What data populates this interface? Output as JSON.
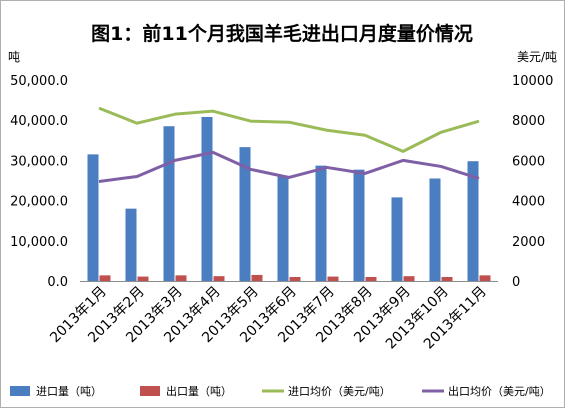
{
  "chart_data": {
    "type": "bar",
    "title": "图1：前11个月我国羊毛进出口月度量价情况",
    "ylabel_left": "吨",
    "ylabel_right": "美元/吨",
    "ylim_left": [
      0,
      50000
    ],
    "ylim_right": [
      0,
      10000
    ],
    "yticks_left": [
      "0.0",
      "10,000.0",
      "20,000.0",
      "30,000.0",
      "40,000.0",
      "50,000.0"
    ],
    "yticks_right": [
      "0",
      "2000",
      "4000",
      "6000",
      "8000",
      "10000"
    ],
    "categories": [
      "2013年1月",
      "2013年2月",
      "2013年3月",
      "2013年4月",
      "2013年5月",
      "2013年6月",
      "2013年7月",
      "2013年8月",
      "2013年9月",
      "2013年10月",
      "2013年11月"
    ],
    "series": [
      {
        "name": "进口量（吨）",
        "type": "bar",
        "axis": "left",
        "color": "#4a7ec1",
        "values": [
          31500,
          18000,
          38500,
          40800,
          33300,
          26200,
          28700,
          27700,
          20800,
          25500,
          29800
        ]
      },
      {
        "name": "出口量（吨）",
        "type": "bar",
        "axis": "left",
        "color": "#c0504d",
        "values": [
          1400,
          1100,
          1400,
          1200,
          1500,
          1000,
          1100,
          1000,
          1200,
          1000,
          1400
        ]
      },
      {
        "name": "进口均价（美元/吨）",
        "type": "line",
        "axis": "right",
        "color": "#9bbb59",
        "values": [
          8600,
          7850,
          8300,
          8450,
          7950,
          7900,
          7500,
          7250,
          6450,
          7400,
          7950
        ]
      },
      {
        "name": "出口均价（美元/吨）",
        "type": "line",
        "axis": "right",
        "color": "#7f5fa6",
        "values": [
          4950,
          5200,
          6000,
          6400,
          5550,
          5150,
          5650,
          5350,
          6000,
          5700,
          5100
        ]
      }
    ],
    "grid": false,
    "legend_position": "bottom"
  }
}
